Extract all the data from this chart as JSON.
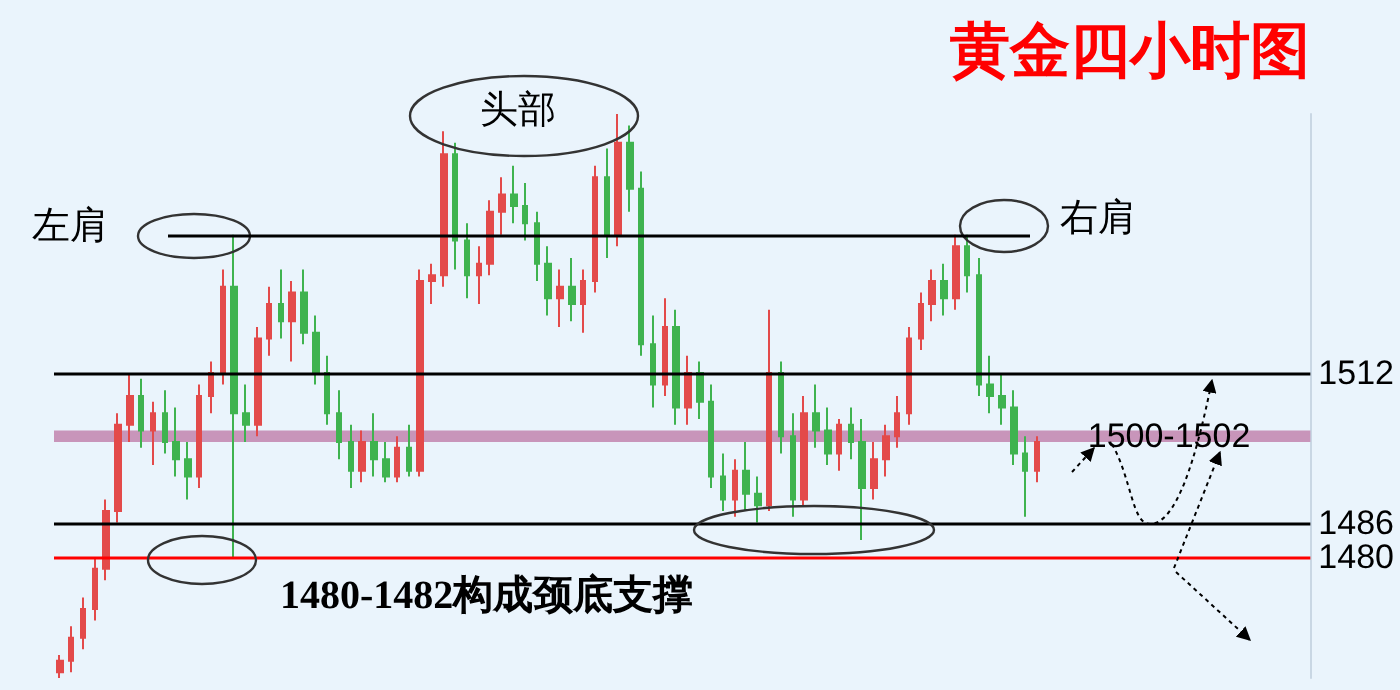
{
  "chart_data": {
    "type": "candlestick",
    "title": "黄金四小时图",
    "annotations": [
      "左肩",
      "头部",
      "右肩",
      "1480-1482构成颈底支撑"
    ],
    "categories": [
      null,
      null,
      null,
      null,
      null,
      null,
      null,
      null,
      null,
      null,
      null,
      null,
      null,
      null,
      null,
      null,
      null,
      null,
      null,
      null,
      null,
      null,
      null,
      null,
      null,
      null,
      null,
      null,
      null,
      null,
      null,
      null,
      null,
      null,
      null,
      null,
      null,
      null,
      null,
      null,
      null,
      null,
      null,
      null,
      null,
      null,
      null,
      null,
      null,
      null,
      null,
      null,
      null,
      null,
      null,
      null,
      null,
      null,
      null,
      null,
      null,
      null,
      null,
      null,
      null,
      null,
      null,
      null,
      null,
      null,
      null,
      null,
      null,
      null,
      null,
      null,
      null,
      null,
      null,
      null,
      null,
      null,
      null,
      null,
      null,
      null,
      null,
      null,
      null,
      null,
      null,
      null,
      null,
      null,
      null,
      null,
      null,
      null,
      null,
      null,
      null,
      null,
      null,
      null,
      null,
      null,
      null,
      null
    ],
    "series": [
      {
        "ohlc": [
          [
            1460,
            1463,
            1459,
            1462
          ],
          [
            1462,
            1468,
            1460,
            1466
          ],
          [
            1466,
            1473,
            1464,
            1471
          ],
          [
            1471,
            1480,
            1469,
            1478
          ],
          [
            1478,
            1490,
            1476,
            1488
          ],
          [
            1488,
            1505,
            1486,
            1503
          ],
          [
            1503,
            1512,
            1500,
            1508
          ],
          [
            1508,
            1511,
            1499,
            1502
          ],
          [
            1502,
            1507,
            1496,
            1505
          ],
          [
            1505,
            1509,
            1498,
            1500
          ],
          [
            1500,
            1506,
            1494,
            1497
          ],
          [
            1497,
            1500,
            1490,
            1494
          ],
          [
            1494,
            1510,
            1492,
            1508
          ],
          [
            1508,
            1514,
            1505,
            1512
          ],
          [
            1512,
            1530,
            1510,
            1527
          ],
          [
            1527,
            1536,
            1480,
            1505
          ],
          [
            1505,
            1510,
            1500,
            1503
          ],
          [
            1503,
            1520,
            1501,
            1518
          ],
          [
            1518,
            1527,
            1515,
            1524
          ],
          [
            1524,
            1530,
            1518,
            1521
          ],
          [
            1521,
            1528,
            1514,
            1526
          ],
          [
            1526,
            1530,
            1517,
            1519
          ],
          [
            1519,
            1522,
            1510,
            1512
          ],
          [
            1512,
            1515,
            1503,
            1505
          ],
          [
            1505,
            1509,
            1497,
            1500
          ],
          [
            1500,
            1503,
            1492,
            1495
          ],
          [
            1495,
            1502,
            1493,
            1500
          ],
          [
            1500,
            1505,
            1494,
            1497
          ],
          [
            1497,
            1500,
            1493,
            1494
          ],
          [
            1494,
            1501,
            1493,
            1499
          ],
          [
            1499,
            1503,
            1494,
            1495
          ],
          [
            1495,
            1530,
            1494,
            1528
          ],
          [
            1528,
            1531,
            1524,
            1529
          ],
          [
            1529,
            1554,
            1527,
            1550
          ],
          [
            1550,
            1552,
            1530,
            1535
          ],
          [
            1535,
            1538,
            1525,
            1529
          ],
          [
            1529,
            1534,
            1524,
            1531
          ],
          [
            1531,
            1542,
            1529,
            1540
          ],
          [
            1540,
            1546,
            1536,
            1543
          ],
          [
            1543,
            1548,
            1538,
            1541
          ],
          [
            1541,
            1545,
            1535,
            1538
          ],
          [
            1538,
            1540,
            1528,
            1531
          ],
          [
            1531,
            1534,
            1522,
            1525
          ],
          [
            1525,
            1530,
            1520,
            1527
          ],
          [
            1527,
            1532,
            1521,
            1524
          ],
          [
            1524,
            1530,
            1519,
            1528
          ],
          [
            1528,
            1548,
            1526,
            1546
          ],
          [
            1546,
            1551,
            1532,
            1536
          ],
          [
            1536,
            1557,
            1534,
            1552
          ],
          [
            1552,
            1555,
            1540,
            1544
          ],
          [
            1544,
            1547,
            1515,
            1517
          ],
          [
            1517,
            1522,
            1506,
            1510
          ],
          [
            1510,
            1525,
            1508,
            1520
          ],
          [
            1520,
            1523,
            1503,
            1506
          ],
          [
            1506,
            1515,
            1503,
            1512
          ],
          [
            1512,
            1514,
            1504,
            1507
          ],
          [
            1507,
            1510,
            1492,
            1494
          ],
          [
            1494,
            1498,
            1488,
            1490
          ],
          [
            1490,
            1497,
            1487,
            1495
          ],
          [
            1495,
            1500,
            1488,
            1491
          ],
          [
            1491,
            1494,
            1486,
            1489
          ],
          [
            1489,
            1523,
            1488,
            1512
          ],
          [
            1512,
            1514,
            1498,
            1501
          ],
          [
            1501,
            1505,
            1487,
            1490
          ],
          [
            1490,
            1508,
            1489,
            1505
          ],
          [
            1505,
            1510,
            1499,
            1502
          ],
          [
            1502,
            1506,
            1496,
            1498
          ],
          [
            1498,
            1504,
            1495,
            1503
          ],
          [
            1503,
            1506,
            1497,
            1500
          ],
          [
            1500,
            1504,
            1483,
            1492
          ],
          [
            1492,
            1500,
            1490,
            1497
          ],
          [
            1497,
            1503,
            1494,
            1501
          ],
          [
            1501,
            1508,
            1499,
            1505
          ],
          [
            1505,
            1520,
            1503,
            1518
          ],
          [
            1518,
            1526,
            1516,
            1524
          ],
          [
            1524,
            1530,
            1521,
            1528
          ],
          [
            1528,
            1531,
            1522,
            1525
          ],
          [
            1525,
            1536,
            1523,
            1534
          ],
          [
            1534,
            1536,
            1526,
            1529
          ],
          [
            1529,
            1532,
            1508,
            1510
          ],
          [
            1510,
            1515,
            1505,
            1508
          ],
          [
            1508,
            1512,
            1503,
            1506
          ],
          [
            1506,
            1509,
            1496,
            1498
          ],
          [
            1498,
            1501,
            1487,
            1495
          ],
          [
            1495,
            1501,
            1493,
            1500
          ],
          null,
          null,
          null,
          null,
          null,
          null,
          null,
          null,
          null,
          null,
          null,
          null,
          null,
          null,
          null,
          null,
          null,
          null,
          null,
          null,
          null,
          null,
          null
        ],
        "colors": [
          "#e34a4a",
          "#e34a4a",
          "#e34a4a",
          "#e34a4a",
          "#e34a4a",
          "#e34a4a",
          "#e34a4a",
          "#3fb34f",
          "#e34a4a",
          "#3fb34f",
          "#3fb34f",
          "#3fb34f",
          "#e34a4a",
          "#e34a4a",
          "#e34a4a",
          "#3fb34f",
          "#3fb34f",
          "#e34a4a",
          "#e34a4a",
          "#3fb34f",
          "#e34a4a",
          "#3fb34f",
          "#3fb34f",
          "#3fb34f",
          "#3fb34f",
          "#3fb34f",
          "#e34a4a",
          "#3fb34f",
          "#3fb34f",
          "#e34a4a",
          "#3fb34f",
          "#e34a4a",
          "#e34a4a",
          "#e34a4a",
          "#3fb34f",
          "#3fb34f",
          "#e34a4a",
          "#e34a4a",
          "#e34a4a",
          "#3fb34f",
          "#3fb34f",
          "#3fb34f",
          "#3fb34f",
          "#e34a4a",
          "#3fb34f",
          "#e34a4a",
          "#e34a4a",
          "#3fb34f",
          "#e34a4a",
          "#3fb34f",
          "#3fb34f",
          "#3fb34f",
          "#e34a4a",
          "#3fb34f",
          "#e34a4a",
          "#3fb34f",
          "#3fb34f",
          "#3fb34f",
          "#e34a4a",
          "#3fb34f",
          "#3fb34f",
          "#e34a4a",
          "#3fb34f",
          "#3fb34f",
          "#e34a4a",
          "#3fb34f",
          "#3fb34f",
          "#e34a4a",
          "#3fb34f",
          "#3fb34f",
          "#e34a4a",
          "#e34a4a",
          "#e34a4a",
          "#e34a4a",
          "#e34a4a",
          "#e34a4a",
          "#3fb34f",
          "#e34a4a",
          "#3fb34f",
          "#3fb34f",
          "#3fb34f",
          "#3fb34f",
          "#3fb34f",
          "#3fb34f",
          "#e34a4a",
          null,
          null,
          null,
          null,
          null,
          null,
          null,
          null,
          null,
          null,
          null,
          null,
          null,
          null,
          null,
          null,
          null,
          null,
          null,
          null,
          null,
          null,
          null
        ]
      }
    ],
    "ylim": [
      1459,
      1557
    ],
    "yticks": [
      1480,
      1486,
      1512
    ],
    "tick_labels": "y",
    "ref_lines": [
      {
        "axis": "y",
        "value": 1512,
        "color": "#000000"
      },
      {
        "axis": "y",
        "value": 1486,
        "color": "#000000"
      },
      {
        "axis": "y",
        "value": 1480,
        "color": "#ff0000"
      }
    ],
    "bands": [
      {
        "axis": "y",
        "from": 1500,
        "to": 1502,
        "label": "1500-1502",
        "color": "#c48bb3"
      }
    ]
  }
}
